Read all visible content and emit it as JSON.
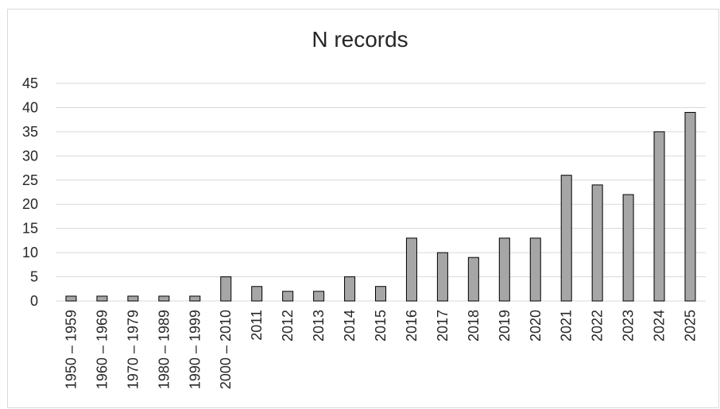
{
  "chart_data": {
    "type": "bar",
    "title": "N records",
    "xlabel": "",
    "ylabel": "",
    "categories": [
      "1950 – 1959",
      "1960 – 1969",
      "1970 – 1979",
      "1980 – 1989",
      "1990 – 1999",
      "2000 – 2010",
      "2011",
      "2012",
      "2013",
      "2014",
      "2015",
      "2016",
      "2017",
      "2018",
      "2019",
      "2020",
      "2021",
      "2022",
      "2023",
      "2024",
      "2025"
    ],
    "values": [
      1,
      1,
      1,
      1,
      1,
      5,
      3,
      2,
      2,
      5,
      3,
      13,
      10,
      9,
      13,
      13,
      26,
      24,
      22,
      35,
      39
    ],
    "ylim": [
      0,
      45
    ],
    "yticks": [
      0,
      5,
      10,
      15,
      20,
      25,
      30,
      35,
      40,
      45
    ],
    "grid": true,
    "legend": "none",
    "bar_color": "#a6a6a6",
    "bar_edge_color": "#000000",
    "grid_color": "#d9d9d9"
  }
}
